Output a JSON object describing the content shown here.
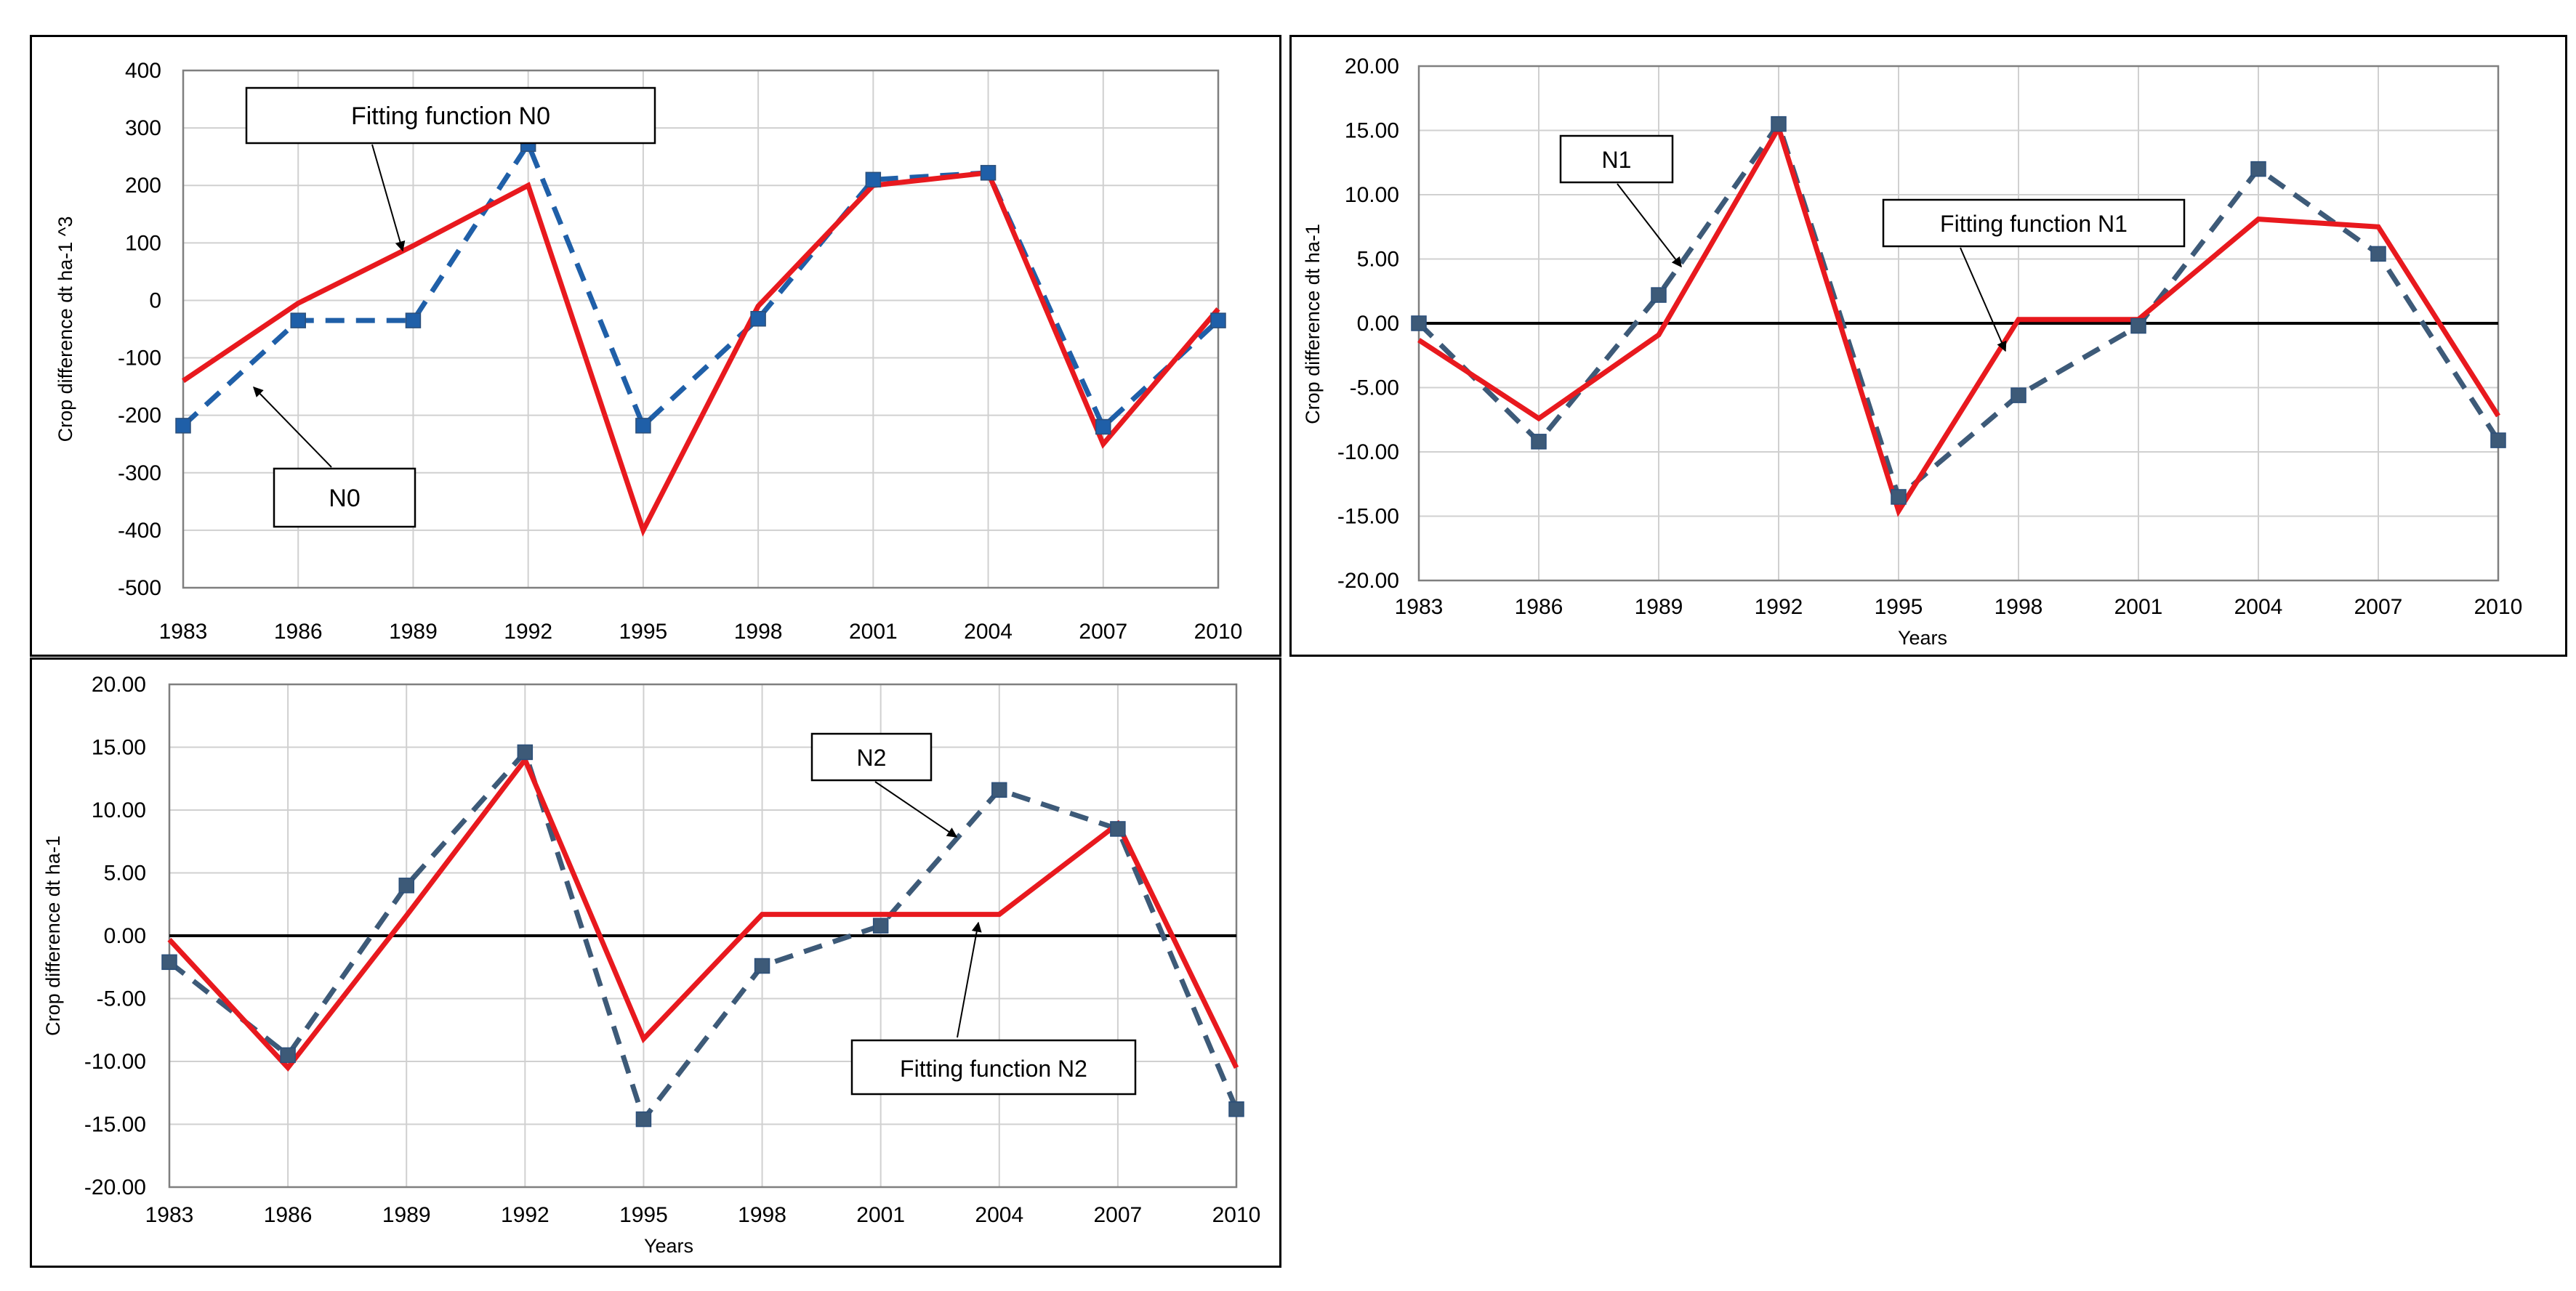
{
  "chart_data": [
    {
      "id": "n0",
      "type": "line",
      "title": "",
      "xlabel": "",
      "ylabel": "Crop difference dt ha-1 ^3",
      "categories": [
        "1983",
        "1986",
        "1989",
        "1992",
        "1995",
        "1998",
        "2001",
        "2004",
        "2007",
        "2010"
      ],
      "ylim": [
        -500,
        400
      ],
      "yticks": [
        400,
        300,
        200,
        100,
        0,
        -100,
        -200,
        -300,
        -400,
        -500
      ],
      "ytick_labels": [
        "400",
        "300",
        "200",
        "100",
        "0",
        "-100",
        "-200",
        "-300",
        "-400",
        "-500"
      ],
      "grid": true,
      "zero_line": false,
      "series": [
        {
          "name": "N0",
          "style": "dashed-markers",
          "color": "#1f5fa8",
          "values": [
            -218,
            -35,
            -35,
            272,
            -218,
            -32,
            210,
            222,
            -220,
            -35
          ]
        },
        {
          "name": "Fitting function N0",
          "style": "solid",
          "color": "#e8191e",
          "values": [
            -140,
            -5,
            95,
            200,
            -400,
            -10,
            200,
            222,
            -250,
            -15
          ]
        }
      ],
      "annotations": [
        {
          "label": "Fitting function N0",
          "target_series": "Fitting function N0"
        },
        {
          "label": "N0",
          "target_series": "N0"
        }
      ]
    },
    {
      "id": "n1",
      "type": "line",
      "title": "",
      "xlabel": "Years",
      "ylabel": "Crop difference dt ha-1",
      "categories": [
        "1983",
        "1986",
        "1989",
        "1992",
        "1995",
        "1998",
        "2001",
        "2004",
        "2007",
        "2010"
      ],
      "ylim": [
        -20,
        20
      ],
      "yticks": [
        20,
        15,
        10,
        5,
        0,
        -5,
        -10,
        -15,
        -20
      ],
      "ytick_labels": [
        "20.00",
        "15.00",
        "10.00",
        "5.00",
        "0.00",
        "-5.00",
        "-10.00",
        "-15.00",
        "-20.00"
      ],
      "grid": true,
      "zero_line": true,
      "series": [
        {
          "name": "N1",
          "style": "dashed-markers",
          "color": "#3d5a78",
          "values": [
            0,
            -9.2,
            2.2,
            15.5,
            -13.5,
            -5.6,
            -0.2,
            12.0,
            5.4,
            -9.1
          ]
        },
        {
          "name": "Fitting function N1",
          "style": "solid",
          "color": "#e8191e",
          "values": [
            -1.3,
            -7.4,
            -0.9,
            15.2,
            -14.6,
            0.3,
            0.3,
            8.1,
            7.5,
            -7.2
          ]
        }
      ],
      "annotations": [
        {
          "label": "N1",
          "target_series": "N1"
        },
        {
          "label": "Fitting function N1",
          "target_series": "Fitting function N1"
        }
      ]
    },
    {
      "id": "n2",
      "type": "line",
      "title": "",
      "xlabel": "Years",
      "ylabel": "Crop difference dt ha-1",
      "categories": [
        "1983",
        "1986",
        "1989",
        "1992",
        "1995",
        "1998",
        "2001",
        "2004",
        "2007",
        "2010"
      ],
      "ylim": [
        -20,
        20
      ],
      "yticks": [
        20,
        15,
        10,
        5,
        0,
        -5,
        -10,
        -15,
        -20
      ],
      "ytick_labels": [
        "20.00",
        "15.00",
        "10.00",
        "5.00",
        "0.00",
        "-5.00",
        "-10.00",
        "-15.00",
        "-20.00"
      ],
      "grid": true,
      "zero_line": true,
      "series": [
        {
          "name": "N2",
          "style": "dashed-markers",
          "color": "#3d5a78",
          "values": [
            -2.1,
            -9.5,
            4.0,
            14.6,
            -14.6,
            -2.4,
            0.8,
            11.6,
            8.5,
            -13.8
          ]
        },
        {
          "name": "Fitting function N2",
          "style": "solid",
          "color": "#e8191e",
          "values": [
            -0.3,
            -10.5,
            1.6,
            14.0,
            -8.2,
            1.7,
            1.7,
            1.7,
            8.9,
            -10.5
          ]
        }
      ],
      "annotations": [
        {
          "label": "N2",
          "target_series": "N2"
        },
        {
          "label": "Fitting function N2",
          "target_series": "Fitting function N2"
        }
      ]
    }
  ]
}
